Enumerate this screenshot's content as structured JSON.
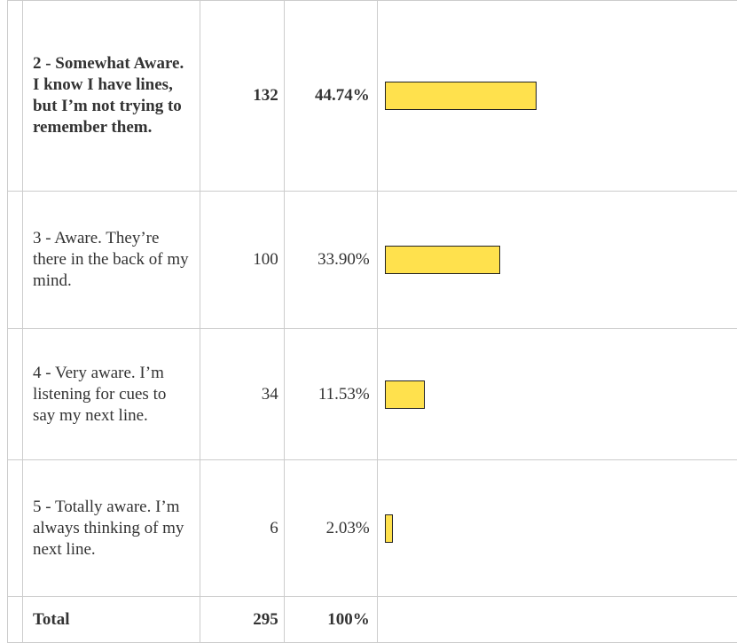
{
  "table": {
    "rows": [
      {
        "label": "2 - Somewhat Aware. I know I have lines, but I’m not trying to remember them.",
        "count": 132,
        "percent": 44.74,
        "percent_label": "44.74%"
      },
      {
        "label": "3 - Aware. They’re there in the back of my mind.",
        "count": 100,
        "percent": 33.9,
        "percent_label": "33.90%"
      },
      {
        "label": "4 - Very aware. I’m listening for cues to say my next line.",
        "count": 34,
        "percent": 11.53,
        "percent_label": "11.53%"
      },
      {
        "label": "5 - Totally aware. I’m always thinking of my next line.",
        "count": 6,
        "percent": 2.03,
        "percent_label": "2.03%"
      }
    ],
    "total": {
      "label": "Total",
      "count": 295,
      "percent": 100,
      "percent_label": "100%"
    }
  }
}
